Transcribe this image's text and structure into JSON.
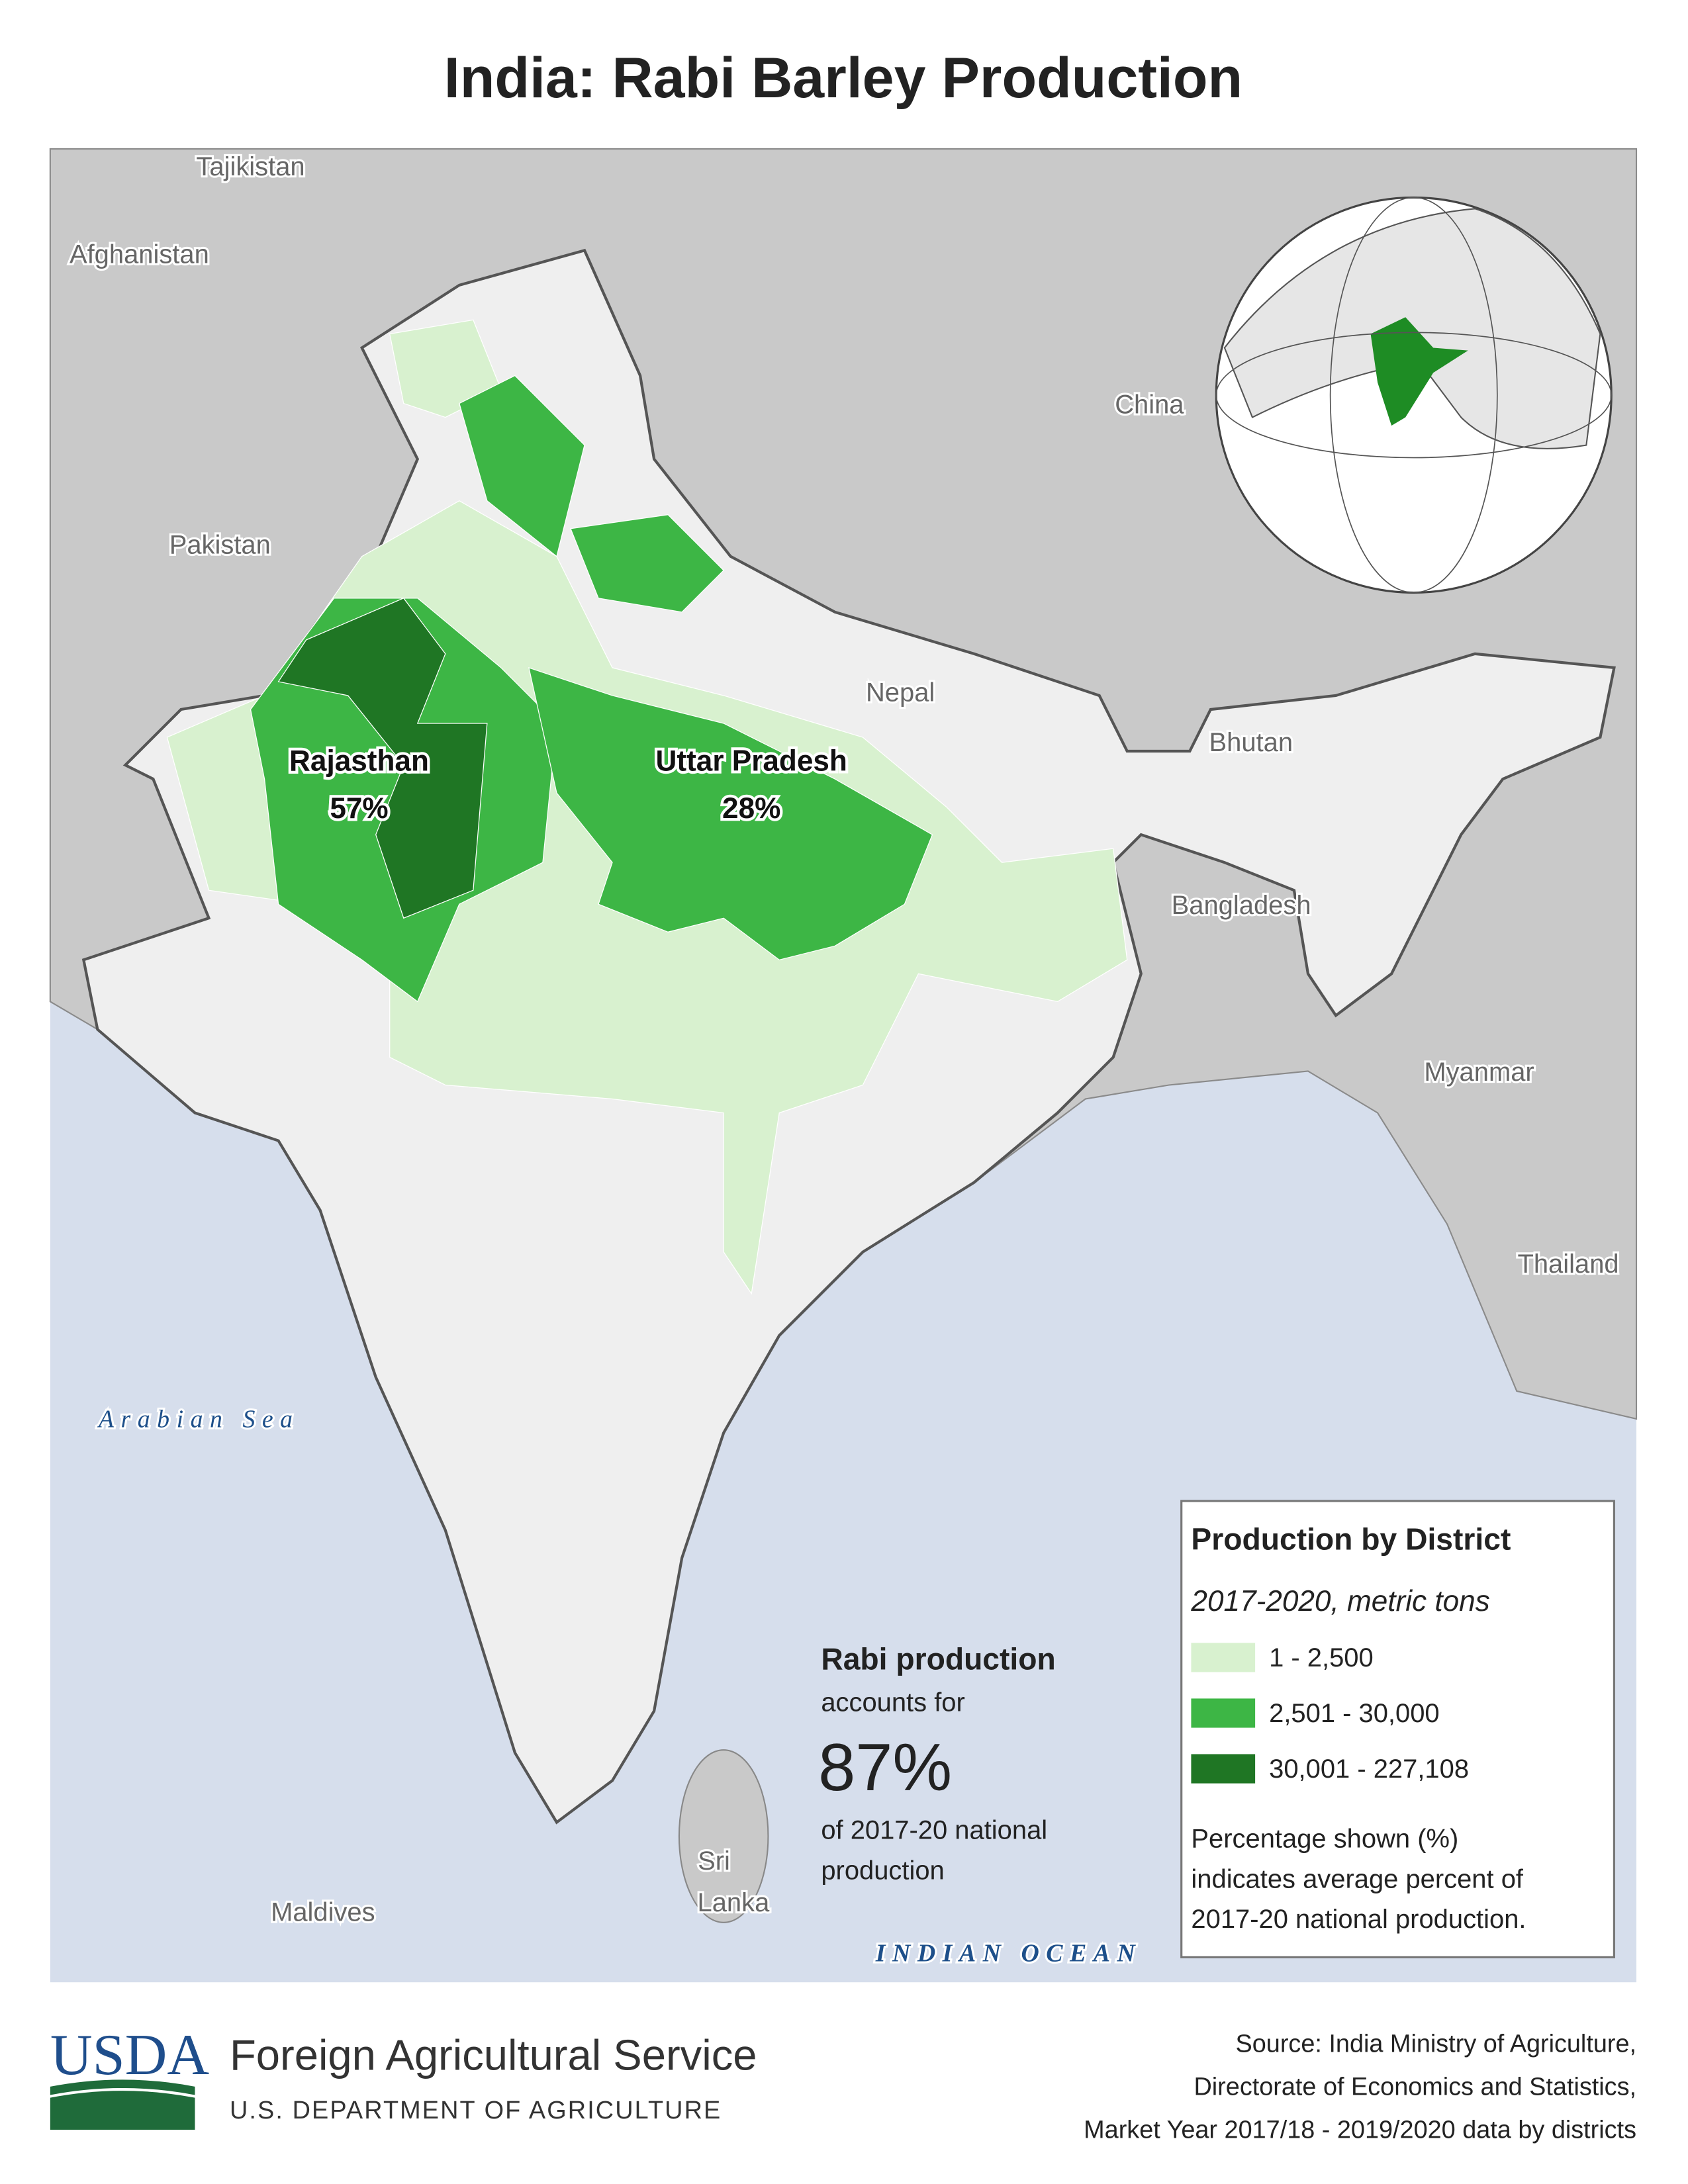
{
  "title": "India: Rabi Barley Production",
  "map": {
    "countries": [
      "Tajikistan",
      "Afghanistan",
      "Pakistan",
      "China",
      "Nepal",
      "Bhutan",
      "Bangladesh",
      "Myanmar",
      "Thailand",
      "Maldives",
      [
        "Sri",
        "Lanka"
      ]
    ],
    "seas": [
      "Arabian Sea",
      "INDIAN OCEAN"
    ],
    "regions": [
      {
        "name": "Rajasthan",
        "share": "57%"
      },
      {
        "name": "Uttar Pradesh",
        "share": "28%"
      }
    ]
  },
  "callout": {
    "heading": "Rabi production",
    "lines_before": "accounts for",
    "share": "87%",
    "lines_after": [
      "of 2017-20 national",
      "production"
    ]
  },
  "legend": {
    "title": "Production by District",
    "subtitle": "2017-2020, metric tons",
    "items": [
      {
        "label": "1 - 2,500",
        "color": "#d8f1cf"
      },
      {
        "label": "2,501 - 30,000",
        "color": "#3db645"
      },
      {
        "label": "30,001 - 227,108",
        "color": "#1f7624"
      }
    ],
    "note": [
      "Percentage shown (%)",
      "indicates average percent of",
      "2017-20 national production."
    ]
  },
  "footer": {
    "logo": "USDA",
    "agency": "Foreign Agricultural Service",
    "department": "U.S. DEPARTMENT OF AGRICULTURE",
    "source": [
      "Source: India Ministry of Agriculture,",
      "Directorate of Economics and Statistics,",
      "Market Year 2017/18 - 2019/2020 data by districts"
    ]
  }
}
